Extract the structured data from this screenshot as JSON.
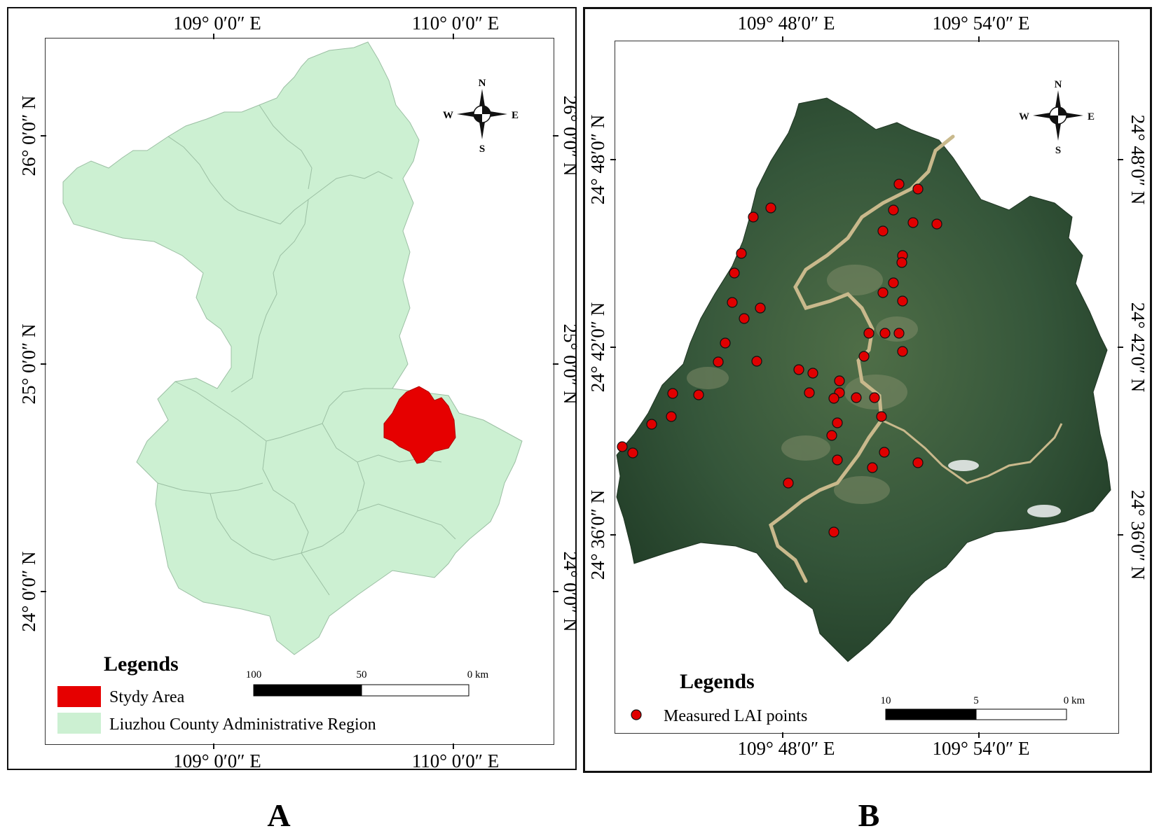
{
  "panel_a": {
    "label": "A",
    "top_lon": [
      "109° 0′0″ E",
      "110° 0′0″ E"
    ],
    "bottom_lon": [
      "109° 0′0″ E",
      "110° 0′0″ E"
    ],
    "left_lat": [
      "26° 0′0″ N",
      "25° 0′0″ N",
      "24° 0′0″ N"
    ],
    "right_lat": [
      "26° 0′0″ N",
      "25° 0′0″ N",
      "24° 0′0″ N"
    ],
    "compass": {
      "n": "N",
      "s": "S",
      "e": "E",
      "w": "W"
    },
    "legend": {
      "title": "Legends",
      "items": [
        {
          "label": "Stydy Area",
          "color": "#e60000"
        },
        {
          "label": "Liuzhou County Administrative Region",
          "color": "#ccf0d2"
        }
      ]
    },
    "scale_bar": {
      "ticks": [
        "100",
        "50",
        "0 km"
      ]
    }
  },
  "panel_b": {
    "label": "B",
    "top_lon": [
      "109° 48′0″ E",
      "109° 54′0″ E"
    ],
    "bottom_lon": [
      "109° 48′0″ E",
      "109° 54′0″ E"
    ],
    "left_lat": [
      "24° 48′0″ N",
      "24° 42′0″ N",
      "24° 36′0″ N"
    ],
    "right_lat": [
      "24° 48′0″ N",
      "24° 42′0″ N",
      "24° 36′0″ N"
    ],
    "compass": {
      "n": "N",
      "s": "S",
      "e": "E",
      "w": "W"
    },
    "legend": {
      "title": "Legends",
      "items": [
        {
          "label": "Measured LAI points",
          "color": "#e00000"
        }
      ]
    },
    "scale_bar": {
      "ticks": [
        "10",
        "5",
        "0 km"
      ]
    },
    "lai_points": [
      [
        1283,
        263
      ],
      [
        1310,
        270
      ],
      [
        1275,
        300
      ],
      [
        1260,
        330
      ],
      [
        1303,
        318
      ],
      [
        1337,
        320
      ],
      [
        1100,
        297
      ],
      [
        1075,
        310
      ],
      [
        1058,
        362
      ],
      [
        1048,
        390
      ],
      [
        1045,
        432
      ],
      [
        1085,
        440
      ],
      [
        1062,
        455
      ],
      [
        1035,
        490
      ],
      [
        1025,
        517
      ],
      [
        1080,
        516
      ],
      [
        1288,
        365
      ],
      [
        1287,
        375
      ],
      [
        1275,
        404
      ],
      [
        1260,
        418
      ],
      [
        1288,
        430
      ],
      [
        1240,
        476
      ],
      [
        1263,
        476
      ],
      [
        1283,
        476
      ],
      [
        1288,
        502
      ],
      [
        1233,
        509
      ],
      [
        1140,
        528
      ],
      [
        1160,
        533
      ],
      [
        1198,
        544
      ],
      [
        1198,
        561
      ],
      [
        1155,
        561
      ],
      [
        1190,
        569
      ],
      [
        1222,
        568
      ],
      [
        1248,
        568
      ],
      [
        1258,
        595
      ],
      [
        1195,
        604
      ],
      [
        1187,
        622
      ],
      [
        1262,
        646
      ],
      [
        1195,
        657
      ],
      [
        1245,
        668
      ],
      [
        1310,
        661
      ],
      [
        1125,
        690
      ],
      [
        1190,
        760
      ],
      [
        960,
        562
      ],
      [
        997,
        564
      ],
      [
        958,
        595
      ],
      [
        930,
        606
      ],
      [
        888,
        638
      ],
      [
        903,
        647
      ]
    ],
    "river_color": "#c9b98c",
    "imagery_color": "#2d4a2e"
  }
}
